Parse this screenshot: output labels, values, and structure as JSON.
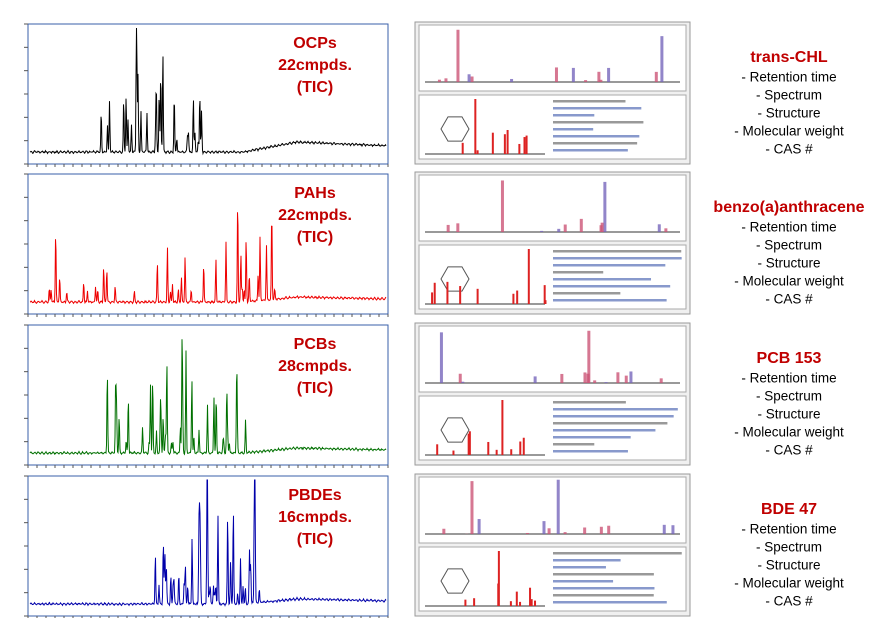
{
  "panels": [
    {
      "class_label": [
        "OCPs",
        "22cmpds.",
        "(TIC)"
      ],
      "compound": "trans-CHL",
      "details": [
        "- Retention time",
        "- Spectrum",
        "- Structure",
        "- Molecular weight",
        "- CAS #"
      ],
      "trace_color": "#000000"
    },
    {
      "class_label": [
        "PAHs",
        "22cmpds.",
        "(TIC)"
      ],
      "compound": "benzo(a)anthracene",
      "details": [
        "- Retention time",
        "- Spectrum",
        "- Structure",
        "- Molecular weight",
        "- CAS #"
      ],
      "trace_color": "#ee0000"
    },
    {
      "class_label": [
        "PCBs",
        "28cmpds.",
        "(TIC)"
      ],
      "compound": "PCB 153",
      "details": [
        "- Retention time",
        "- Spectrum",
        "- Structure",
        "- Molecular weight",
        "- CAS #"
      ],
      "trace_color": "#007000"
    },
    {
      "class_label": [
        "PBDEs",
        "16cmpds.",
        "(TIC)"
      ],
      "compound": "BDE 47",
      "details": [
        "- Retention time",
        "- Spectrum",
        "- Structure",
        "- Molecular weight",
        "- CAS #"
      ],
      "trace_color": "#0000aa"
    }
  ]
}
